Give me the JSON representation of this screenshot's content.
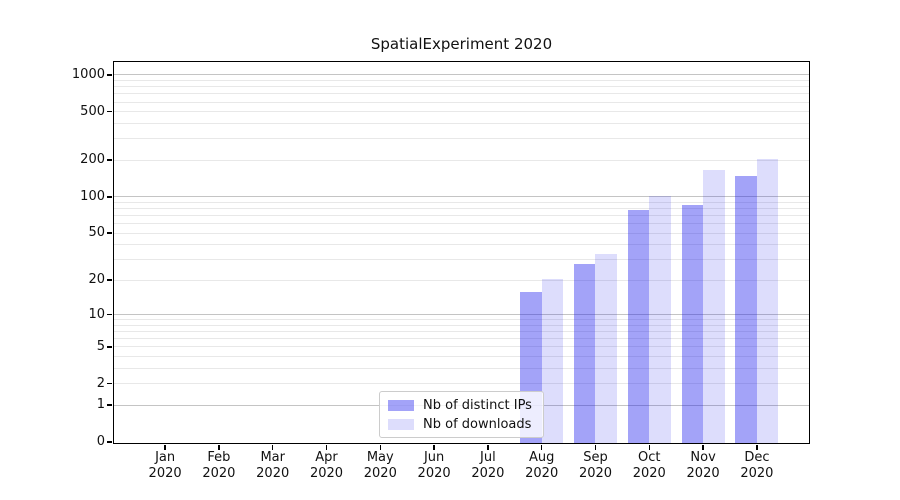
{
  "chart_data": {
    "type": "bar",
    "title": "SpatialExperiment 2020",
    "categories": [
      "Jan 2020",
      "Feb 2020",
      "Mar 2020",
      "Apr 2020",
      "May 2020",
      "Jun 2020",
      "Jul 2020",
      "Aug 2020",
      "Sep 2020",
      "Oct 2020",
      "Nov 2020",
      "Dec 2020"
    ],
    "series": [
      {
        "name": "Nb of distinct IPs",
        "color_hex": "#a3a3f8",
        "color_rgba": "rgba(26,26,238,0.40)",
        "values": [
          null,
          null,
          null,
          null,
          null,
          null,
          null,
          16,
          28,
          80,
          88,
          150
        ]
      },
      {
        "name": "Nb of downloads",
        "color_hex": "#ddddfc",
        "color_rgba": "rgba(26,26,238,0.15)",
        "values": [
          null,
          null,
          null,
          null,
          null,
          null,
          null,
          21,
          34,
          104,
          168,
          210
        ]
      }
    ],
    "xlabel": "",
    "ylabel": "",
    "yscale": "log1p",
    "ylim": [
      0,
      1276
    ],
    "y_tick_labels": [
      0,
      1,
      2,
      5,
      10,
      20,
      50,
      100,
      200,
      500,
      1000
    ],
    "grid": "horizontal",
    "grid_major_values": [
      1,
      10,
      100,
      1000
    ],
    "grid_minor_values": [
      2,
      3,
      4,
      5,
      6,
      7,
      8,
      9,
      20,
      30,
      40,
      50,
      60,
      70,
      80,
      90,
      200,
      300,
      400,
      500,
      600,
      700,
      800,
      900
    ],
    "legend_position": "lower center-left inside plot"
  },
  "colors": {
    "bar_distinct_ips": "#a3a3f8",
    "bar_downloads": "#ddddfc",
    "grid_major": "#c4c4c4",
    "grid_minor": "#e8e8e8",
    "axis_spine": "#000000",
    "text": "#111111",
    "legend_border": "#cccccc"
  }
}
